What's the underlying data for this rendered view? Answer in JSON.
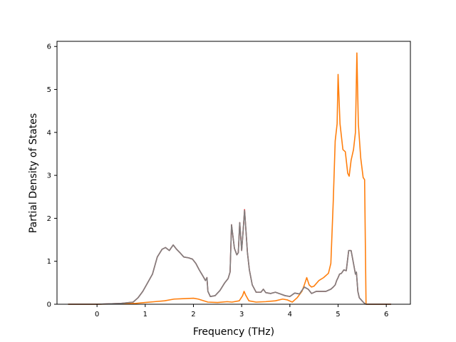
{
  "chart_data": {
    "type": "line",
    "xlabel": "Frequency (THz)",
    "ylabel": "Partial Density of States",
    "xlim": [
      -0.83,
      6.5
    ],
    "ylim": [
      0,
      6.12
    ],
    "xticks": [
      "0",
      "1",
      "2",
      "3",
      "4",
      "5",
      "6"
    ],
    "yticks": [
      "0",
      "1",
      "2",
      "3",
      "4",
      "5",
      "6"
    ],
    "grid": false,
    "series": [
      {
        "color": "#d62728",
        "x": [
          -0.6,
          0.0,
          0.5,
          0.75,
          0.85,
          0.95,
          1.05,
          1.15,
          1.25,
          1.35,
          1.42,
          1.5,
          1.58,
          1.65,
          1.72,
          1.8,
          1.9,
          1.98,
          2.05,
          2.12,
          2.2,
          2.25,
          2.28,
          2.3,
          2.35,
          2.45,
          2.55,
          2.65,
          2.72,
          2.76,
          2.79,
          2.85,
          2.9,
          2.93,
          2.96,
          3.0,
          3.03,
          3.06,
          3.09,
          3.12,
          3.16,
          3.22,
          3.3,
          3.4,
          3.45,
          3.5,
          3.6,
          3.7,
          3.8,
          3.9,
          4.0,
          4.1,
          4.2,
          4.3,
          4.38,
          4.45,
          4.55,
          4.65,
          4.75,
          4.85,
          4.9,
          4.94,
          4.97,
          5.0,
          5.03,
          5.07,
          5.12,
          5.17,
          5.22,
          5.27,
          5.32,
          5.36,
          5.38,
          5.41,
          5.44,
          5.48,
          5.52,
          5.55,
          5.58,
          6.1
        ],
        "y": [
          0,
          0,
          0.02,
          0.05,
          0.15,
          0.3,
          0.5,
          0.7,
          1.1,
          1.28,
          1.32,
          1.25,
          1.38,
          1.28,
          1.2,
          1.1,
          1.08,
          1.05,
          0.95,
          0.8,
          0.65,
          0.55,
          0.62,
          0.3,
          0.18,
          0.2,
          0.32,
          0.5,
          0.6,
          0.75,
          1.85,
          1.3,
          1.15,
          1.2,
          1.9,
          1.25,
          1.7,
          2.2,
          1.7,
          1.2,
          0.8,
          0.45,
          0.28,
          0.28,
          0.35,
          0.27,
          0.25,
          0.28,
          0.24,
          0.2,
          0.18,
          0.26,
          0.24,
          0.4,
          0.35,
          0.25,
          0.3,
          0.3,
          0.3,
          0.35,
          0.4,
          0.45,
          0.55,
          0.62,
          0.7,
          0.72,
          0.8,
          0.78,
          1.25,
          1.25,
          0.95,
          0.7,
          0.75,
          0.3,
          0.15,
          0.1,
          0.05,
          0.02,
          0,
          0
        ]
      },
      {
        "color": "#ff7f0e",
        "x": [
          -0.6,
          0.0,
          0.5,
          0.8,
          1.0,
          1.2,
          1.4,
          1.6,
          1.8,
          2.0,
          2.1,
          2.3,
          2.5,
          2.7,
          2.8,
          2.95,
          3.02,
          3.05,
          3.08,
          3.15,
          3.3,
          3.5,
          3.7,
          3.85,
          3.95,
          4.05,
          4.15,
          4.25,
          4.3,
          4.35,
          4.4,
          4.45,
          4.5,
          4.6,
          4.7,
          4.8,
          4.85,
          4.9,
          4.94,
          4.98,
          5.0,
          5.04,
          5.1,
          5.15,
          5.2,
          5.23,
          5.27,
          5.32,
          5.36,
          5.39,
          5.42,
          5.47,
          5.52,
          5.55,
          5.58,
          6.1
        ],
        "y": [
          0,
          0,
          0.01,
          0.02,
          0.04,
          0.06,
          0.08,
          0.12,
          0.13,
          0.14,
          0.12,
          0.05,
          0.04,
          0.06,
          0.05,
          0.08,
          0.2,
          0.3,
          0.22,
          0.08,
          0.05,
          0.06,
          0.08,
          0.12,
          0.1,
          0.05,
          0.15,
          0.3,
          0.45,
          0.62,
          0.45,
          0.4,
          0.42,
          0.55,
          0.62,
          0.72,
          0.95,
          2.4,
          3.8,
          4.2,
          5.35,
          4.2,
          3.6,
          3.55,
          3.05,
          2.98,
          3.35,
          3.6,
          4.0,
          5.85,
          4.2,
          3.4,
          2.95,
          2.9,
          0,
          0
        ]
      },
      {
        "color": "#7f7f7f",
        "x": [
          -0.6,
          0.0,
          0.5,
          0.75,
          0.85,
          0.95,
          1.05,
          1.15,
          1.25,
          1.35,
          1.42,
          1.5,
          1.58,
          1.65,
          1.72,
          1.8,
          1.9,
          1.98,
          2.05,
          2.12,
          2.2,
          2.25,
          2.28,
          2.3,
          2.35,
          2.45,
          2.55,
          2.65,
          2.72,
          2.76,
          2.79,
          2.85,
          2.9,
          2.93,
          2.96,
          3.0,
          3.03,
          3.06,
          3.09,
          3.12,
          3.16,
          3.22,
          3.3,
          3.4,
          3.45,
          3.5,
          3.6,
          3.7,
          3.8,
          3.9,
          4.0,
          4.1,
          4.2,
          4.3,
          4.38,
          4.45,
          4.55,
          4.65,
          4.75,
          4.85,
          4.9,
          4.94,
          4.97,
          5.0,
          5.03,
          5.07,
          5.12,
          5.17,
          5.22,
          5.27,
          5.32,
          5.36,
          5.38,
          5.41,
          5.44,
          5.48,
          5.52,
          5.55,
          5.58,
          6.1
        ],
        "y": [
          0,
          0,
          0.02,
          0.05,
          0.15,
          0.3,
          0.5,
          0.7,
          1.1,
          1.28,
          1.32,
          1.25,
          1.38,
          1.28,
          1.2,
          1.1,
          1.08,
          1.05,
          0.95,
          0.8,
          0.65,
          0.55,
          0.62,
          0.3,
          0.18,
          0.2,
          0.32,
          0.5,
          0.6,
          0.75,
          1.85,
          1.3,
          1.15,
          1.2,
          1.9,
          1.25,
          1.7,
          2.18,
          1.7,
          1.2,
          0.8,
          0.45,
          0.28,
          0.28,
          0.35,
          0.27,
          0.25,
          0.28,
          0.24,
          0.2,
          0.18,
          0.26,
          0.24,
          0.4,
          0.35,
          0.25,
          0.3,
          0.3,
          0.3,
          0.35,
          0.4,
          0.45,
          0.55,
          0.62,
          0.7,
          0.72,
          0.8,
          0.78,
          1.25,
          1.25,
          0.95,
          0.7,
          0.75,
          0.3,
          0.15,
          0.1,
          0.05,
          0.02,
          0,
          0
        ]
      }
    ]
  }
}
